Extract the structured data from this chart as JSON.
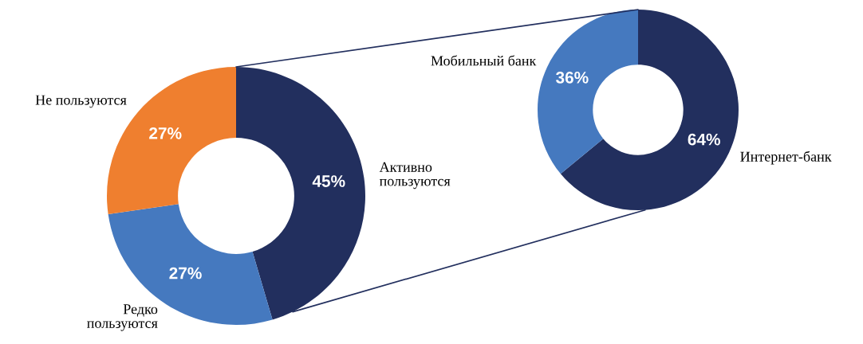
{
  "chart_data": [
    {
      "type": "donut",
      "categories": [
        "Активно\nпользуются",
        "Редко\nпользуются",
        "Не пользуются"
      ],
      "values": [
        45,
        27,
        27
      ],
      "colors": [
        "#222f5e",
        "#4579bf",
        "#ef7f2f"
      ],
      "value_labels": [
        "45%",
        "27%",
        "27%"
      ]
    },
    {
      "type": "donut",
      "categories": [
        "Интернет-банк",
        "Мобильный банк"
      ],
      "values": [
        64,
        36
      ],
      "colors": [
        "#222f5e",
        "#4579bf"
      ],
      "value_labels": [
        "64%",
        "36%"
      ]
    }
  ]
}
